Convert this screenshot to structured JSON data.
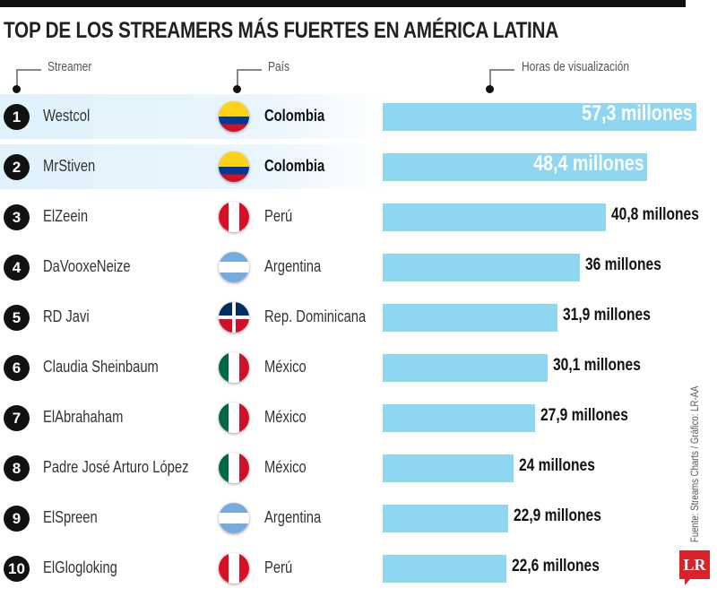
{
  "chart_data": {
    "type": "bar",
    "orientation": "horizontal",
    "title": "TOP DE LOS STREAMERS MÁS FUERTES EN AMÉRICA LATINA",
    "column_headers": [
      "Streamer",
      "País",
      "Horas de visualización"
    ],
    "unit": "millones",
    "bar_color": "#8fd6f0",
    "highlight_color": "#dff1fb",
    "rows": [
      {
        "rank": "1",
        "streamer": "Westcol",
        "country": "Colombia",
        "flag": "colombia",
        "value": 57.3,
        "label": "57,3 millones",
        "highlight": true
      },
      {
        "rank": "2",
        "streamer": "MrStiven",
        "country": "Colombia",
        "flag": "colombia",
        "value": 48.4,
        "label": "48,4 millones",
        "highlight": true
      },
      {
        "rank": "3",
        "streamer": "ElZeein",
        "country": "Perú",
        "flag": "peru",
        "value": 40.8,
        "label": "40,8 millones",
        "highlight": false
      },
      {
        "rank": "4",
        "streamer": "DaVooxeNeize",
        "country": "Argentina",
        "flag": "argentina",
        "value": 36,
        "label": "36 millones",
        "highlight": false
      },
      {
        "rank": "5",
        "streamer": "RD Javi",
        "country": "Rep. Dominicana",
        "flag": "dominican-republic",
        "value": 31.9,
        "label": "31,9 millones",
        "highlight": false
      },
      {
        "rank": "6",
        "streamer": "Claudia Sheinbaum",
        "country": "México",
        "flag": "mexico",
        "value": 30.1,
        "label": "30,1 millones",
        "highlight": false
      },
      {
        "rank": "7",
        "streamer": "ElAbrahaham",
        "country": "México",
        "flag": "mexico",
        "value": 27.9,
        "label": "27,9 millones",
        "highlight": false
      },
      {
        "rank": "8",
        "streamer": "Padre José Arturo López",
        "country": "México",
        "flag": "mexico",
        "value": 24,
        "label": "24 millones",
        "highlight": false
      },
      {
        "rank": "9",
        "streamer": "ElSpreen",
        "country": "Argentina",
        "flag": "argentina",
        "value": 22.9,
        "label": "22,9 millones",
        "highlight": false
      },
      {
        "rank": "10",
        "streamer": "ElGlogloking",
        "country": "Perú",
        "flag": "peru",
        "value": 22.6,
        "label": "22,6 millones",
        "highlight": false
      }
    ],
    "source": "Fuente: Streams Charts / Gráfico: LR-AA",
    "logo": "LR"
  }
}
